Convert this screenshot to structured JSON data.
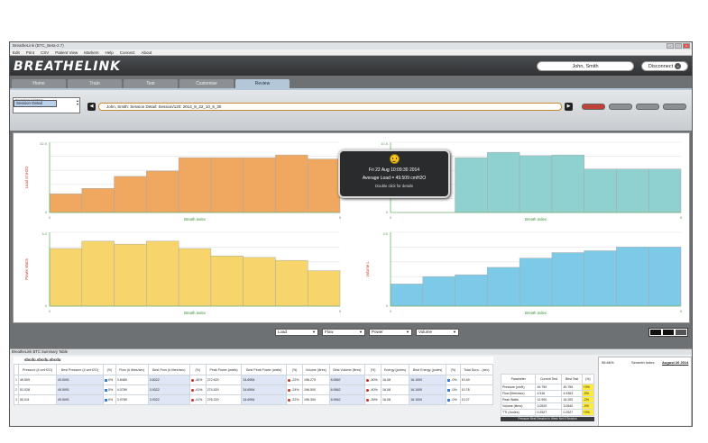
{
  "window": {
    "title": "BreatheLink (BTC_Beta-2.7)"
  },
  "menu": [
    "Edit",
    "Print",
    "CSV",
    "Patient View",
    "Markers",
    "Help",
    "Connect",
    "About"
  ],
  "header": {
    "logo": "BREATHELINK",
    "user": "John, Smith",
    "disconnect": "Disconnect"
  },
  "tabs": [
    {
      "label": "Home",
      "active": false
    },
    {
      "label": "Train",
      "active": false
    },
    {
      "label": "Test",
      "active": false
    },
    {
      "label": "Customise",
      "active": false
    },
    {
      "label": "Review",
      "active": true
    }
  ],
  "sessions": [
    "Session History",
    "Session Detail",
    "Breath Detail"
  ],
  "path": "John, Smith: Session Detail: Session/120: 2014_8_22_10_6_30",
  "tooltip": {
    "date": "Fri 22 Aug 10:09:30 2014",
    "load": "Average Load = 49.509 cmH2O",
    "hint": "Double click for details"
  },
  "selectors": [
    "Load",
    "Flow",
    "Power",
    "Volume"
  ],
  "charts": {
    "x_label": "Breath Index",
    "load_ylabel": "Load cmH2O",
    "flow_ylabel": "Flow L/s",
    "power_ylabel": "Power Watts",
    "volume_ylabel": "Volume L",
    "load_ymax": "52.5",
    "flow_ymax": "10.5",
    "power_ymax": "5.0",
    "volume_ymax": "4.0",
    "ymin": "0",
    "xmin": "0",
    "xmax": "9"
  },
  "chart_data": [
    {
      "type": "bar",
      "title": "",
      "xlabel": "Breath Index",
      "ylabel": "Load cmH2O",
      "x": [
        1,
        2,
        3,
        4,
        5,
        6,
        7,
        8,
        9
      ],
      "values": [
        14,
        18,
        27,
        31,
        41,
        41,
        41,
        43,
        40
      ],
      "ylim": [
        0,
        52.5
      ],
      "color": "#f0a860"
    },
    {
      "type": "bar",
      "title": "",
      "xlabel": "Breath Index",
      "ylabel": "Flow L/s",
      "x": [
        1,
        2,
        3,
        4,
        5,
        6,
        7,
        8,
        9
      ],
      "values": [
        0,
        0,
        8.2,
        9.0,
        8.5,
        8.6,
        6.5,
        6.5,
        6.5
      ],
      "ylim": [
        0,
        10.5
      ],
      "color": "#8fd0d0"
    },
    {
      "type": "bar",
      "title": "",
      "xlabel": "Breath Index",
      "ylabel": "Power Watts",
      "x": [
        1,
        2,
        3,
        4,
        5,
        6,
        7,
        8,
        9
      ],
      "values": [
        3.9,
        4.4,
        4.2,
        4.4,
        3.9,
        3.4,
        3.3,
        3.1,
        2.4
      ],
      "ylim": [
        0,
        5.0
      ],
      "color": "#f8d56b"
    },
    {
      "type": "bar",
      "title": "",
      "xlabel": "Breath Index",
      "ylabel": "Volume L",
      "x": [
        1,
        2,
        3,
        4,
        5,
        6,
        7,
        8,
        9
      ],
      "values": [
        1.2,
        1.6,
        1.7,
        2.1,
        2.6,
        2.9,
        3.0,
        3.2,
        3.2
      ],
      "ylim": [
        0,
        4.0
      ],
      "color": "#7dc9e8"
    }
  ],
  "summary": {
    "title": "BreatheLink BTC Summary Table",
    "session_label": "sbcdu.sbcdu.sbcdu",
    "columns": [
      "",
      "Pressure (# cmH2O)",
      "Best Pressure (# cmH2O)",
      "(%)",
      "Flow (# litres/sec)",
      "Best Flow (# litres/sec)",
      "(%)",
      "Peak Power (watts)",
      "Best Peak Power (watts)",
      "(%)",
      "Volume (litres)",
      "Best Volume (litres)",
      "(%)",
      "Energy (joules)",
      "Best Energy (joules)",
      "(%)",
      "Total Dura... (sec)"
    ],
    "rows": [
      [
        "1",
        "49.509",
        "49.5091",
        "0%",
        "3.8489",
        "3.8322",
        "-40%",
        "272.620",
        "34.6954",
        "-22%",
        "196.275",
        "6.9562",
        "-40%",
        "16.08",
        "16.1000",
        "-0%",
        "10.49"
      ],
      [
        "2",
        "51.028",
        "49.5091",
        "0%",
        "4.0789",
        "3.9322",
        "-41%",
        "274.520",
        "34.6954",
        "-24%",
        "196.500",
        "6.9562",
        "-40%",
        "16.08",
        "16.1000",
        "-0%",
        "10.78"
      ],
      [
        "3",
        "50.011",
        "49.5091",
        "0%",
        "3.9789",
        "3.9322",
        "-41%",
        "276.220",
        "34.6954",
        "-22%",
        "196.300",
        "6.9562",
        "-39%",
        "16.08",
        "16.1000",
        "-0%",
        "10.27"
      ]
    ],
    "right_columns": [
      "Parameter",
      "Current Test",
      "Best Test",
      "(%)"
    ],
    "right_rows": [
      [
        "Pressure (cmH)",
        "49.759",
        "49.759",
        "+0%"
      ],
      [
        "Flow (litres/sec)",
        "4.516",
        "4.9363",
        "-9%"
      ],
      [
        "Peak Watts",
        "12.900",
        "16.200",
        "-2%"
      ],
      [
        "Volume (litres)",
        "3.0520",
        "3.0540",
        "-0%"
      ],
      [
        "TTI (Joules)",
        "0.2527",
        "0.2527",
        "+0%"
      ]
    ],
    "right_footer": "Pressure Best Session in Week Net 8 Session",
    "side_left": "96.66%",
    "side_mid": "Seventh Index",
    "side_right": "August 26 2014"
  }
}
